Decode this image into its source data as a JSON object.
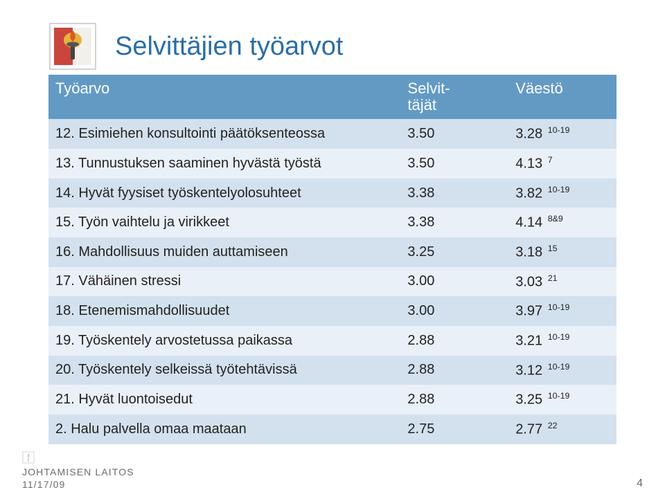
{
  "title": "Selvittäjien työarvot",
  "header": {
    "col1": "Työarvo",
    "col2_line1": "Selvit-",
    "col2_line2": "täjät",
    "col3": "Väestö"
  },
  "rows": [
    {
      "label": "12. Esimiehen konsultointi päätöksenteossa",
      "v1": "3.50",
      "v2": "3.28",
      "sup": "10-19"
    },
    {
      "label": "13. Tunnustuksen saaminen hyvästä työstä",
      "v1": "3.50",
      "v2": "4.13",
      "sup": "7"
    },
    {
      "label": "14. Hyvät fyysiset työskentelyolosuhteet",
      "v1": "3.38",
      "v2": "3.82",
      "sup": "10-19"
    },
    {
      "label": "15. Työn vaihtelu ja virikkeet",
      "v1": "3.38",
      "v2": "4.14",
      "sup": "8&9"
    },
    {
      "label": "16. Mahdollisuus muiden auttamiseen",
      "v1": "3.25",
      "v2": "3.18",
      "sup": "15"
    },
    {
      "label": "17. Vähäinen stressi",
      "v1": "3.00",
      "v2": "3.03",
      "sup": "21"
    },
    {
      "label": "18. Etenemismahdollisuudet",
      "v1": "3.00",
      "v2": "3.97",
      "sup": "10-19"
    },
    {
      "label": "19. Työskentely arvostetussa paikassa",
      "v1": "2.88",
      "v2": "3.21",
      "sup": "10-19"
    },
    {
      "label": "20. Työskentely selkeissä työtehtävissä",
      "v1": "2.88",
      "v2": "3.12",
      "sup": "10-19"
    },
    {
      "label": "21. Hyvät luontoisedut",
      "v1": "2.88",
      "v2": "3.25",
      "sup": "10-19"
    },
    {
      "label": "2. Halu palvella omaa maataan",
      "v1": "2.75",
      "v2": "2.77",
      "sup": "22"
    }
  ],
  "footer": {
    "date": "11/17/09",
    "org": "JOHTAMISEN LAITOS",
    "page": "4"
  },
  "colors": {
    "title": "#2a6ea6",
    "thead_bg": "#639ac4",
    "row_odd": "#d3e1ee",
    "row_even": "#eaf0f7",
    "text": "#222222",
    "footer_text": "#6b6b6b"
  }
}
